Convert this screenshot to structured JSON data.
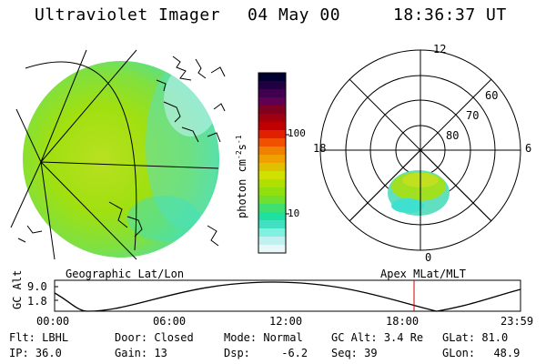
{
  "header": {
    "instrument": "Ultraviolet Imager",
    "date": "04 May 00",
    "time": "18:36:37 UT"
  },
  "colorbar": {
    "unit_label": "photon cm",
    "unit_exp1": "-2",
    "unit_mid": "s",
    "unit_exp2": "-1",
    "tick_labels": [
      "100",
      "10"
    ],
    "colors": [
      "#000030",
      "#200040",
      "#400050",
      "#600050",
      "#800020",
      "#a00010",
      "#c00000",
      "#e02000",
      "#f05000",
      "#f08000",
      "#f0a000",
      "#e0c000",
      "#d0e000",
      "#b0e000",
      "#90e010",
      "#70e030",
      "#40e070",
      "#20e0a0",
      "#40e0c0",
      "#80f0e0",
      "#c0f0f0",
      "#e8f8f8"
    ]
  },
  "left_map": {
    "caption": "Geographic Lat/Lon"
  },
  "right_map": {
    "caption": "Apex MLat/MLT",
    "mlt_labels": {
      "top": "12",
      "left": "18",
      "right": "6",
      "bottom": "0"
    },
    "lat_labels": [
      "60",
      "70",
      "80"
    ]
  },
  "altitude_plot": {
    "axis_title": "GC Alt",
    "y_labels": [
      "9.0",
      "1.8"
    ],
    "x_labels": [
      "00:00",
      "06:00",
      "12:00",
      "18:00",
      "23:59"
    ],
    "current_marker_time": "18:36"
  },
  "info": {
    "flt_label": "Flt:",
    "flt_value": "LBHL",
    "ip_label": "IP:",
    "ip_value": "36.0",
    "door_label": "Door:",
    "door_value": "Closed",
    "gain_label": "Gain:",
    "gain_value": "13",
    "mode_label": "Mode:",
    "mode_value": "Normal",
    "dsp_label": "Dsp:",
    "dsp_value": "-6.2",
    "gcalt_label": "GC Alt:",
    "gcalt_value": "3.4 Re",
    "seq_label": "Seq:",
    "seq_value": "39",
    "glat_label": "GLat:",
    "glat_value": "81.0",
    "glon_label": "GLon:",
    "glon_value": "48.9"
  }
}
